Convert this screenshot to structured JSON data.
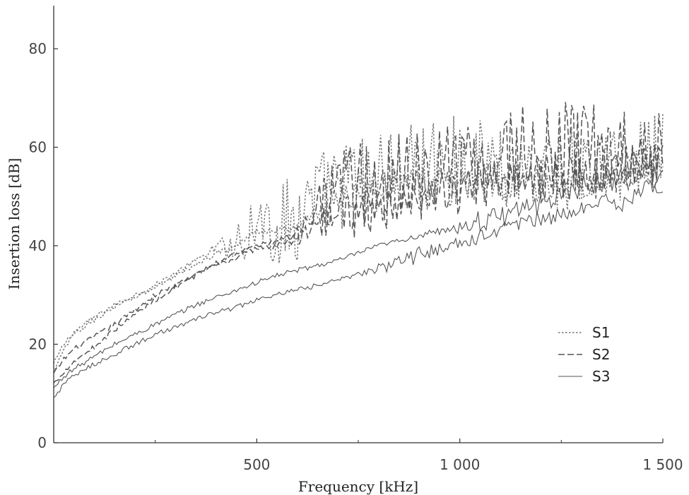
{
  "chart_data": {
    "type": "line",
    "xlabel": "Frequency [kHz]",
    "ylabel": "Insertion loss [dB]",
    "xlim": [
      0,
      1500
    ],
    "ylim": [
      0,
      88
    ],
    "x_ticks": [
      500,
      1000,
      1500
    ],
    "x_tick_labels": [
      "500",
      "1 000",
      "1 500"
    ],
    "x_minor_ticks": [
      250,
      750,
      1250
    ],
    "y_ticks": [
      0,
      20,
      40,
      60,
      80
    ],
    "y_tick_labels": [
      "0",
      "20",
      "40",
      "60",
      "80"
    ],
    "grid": false,
    "legend_position": "lower-right",
    "series": [
      {
        "name": "S1",
        "style": "dotted",
        "color": "#777777",
        "bands": [
          {
            "points": [
              [
                0,
                16
              ],
              [
                25,
                20
              ],
              [
                50,
                22.5
              ],
              [
                100,
                25.5
              ],
              [
                150,
                28
              ],
              [
                200,
                30
              ],
              [
                250,
                32
              ],
              [
                300,
                34.5
              ],
              [
                350,
                37
              ],
              [
                400,
                39.5
              ],
              [
                450,
                41
              ],
              [
                500,
                45
              ],
              [
                550,
                44
              ],
              [
                600,
                46
              ],
              [
                650,
                50
              ],
              [
                700,
                52
              ],
              [
                750,
                54
              ],
              [
                800,
                55
              ],
              [
                850,
                56
              ],
              [
                900,
                56
              ],
              [
                950,
                57
              ],
              [
                1000,
                57
              ],
              [
                1050,
                57
              ],
              [
                1100,
                56
              ],
              [
                1150,
                56
              ],
              [
                1200,
                56
              ],
              [
                1250,
                56
              ],
              [
                1300,
                56
              ],
              [
                1350,
                56
              ],
              [
                1400,
                57
              ],
              [
                1450,
                58
              ],
              [
                1500,
                62
              ]
            ],
            "noise_start": 380,
            "noise_amp": 9
          },
          {
            "points": [
              [
                0,
                14
              ],
              [
                25,
                19
              ],
              [
                50,
                22
              ],
              [
                100,
                25
              ],
              [
                150,
                27.5
              ],
              [
                200,
                29.5
              ],
              [
                250,
                31.5
              ],
              [
                300,
                34
              ],
              [
                350,
                36
              ],
              [
                400,
                38.5
              ],
              [
                450,
                40
              ],
              [
                500,
                43
              ],
              [
                550,
                43
              ],
              [
                600,
                44
              ],
              [
                650,
                47
              ],
              [
                700,
                49
              ],
              [
                750,
                51
              ],
              [
                800,
                52
              ],
              [
                850,
                53
              ],
              [
                900,
                53
              ],
              [
                950,
                53
              ],
              [
                1000,
                53
              ],
              [
                1050,
                53
              ],
              [
                1100,
                52
              ],
              [
                1150,
                52
              ],
              [
                1200,
                52
              ],
              [
                1250,
                52
              ],
              [
                1300,
                52
              ],
              [
                1350,
                53
              ],
              [
                1400,
                54
              ],
              [
                1450,
                55
              ],
              [
                1500,
                57
              ]
            ],
            "noise_start": 600,
            "noise_amp": 3
          }
        ]
      },
      {
        "name": "S2",
        "style": "dashed",
        "color": "#555555",
        "bands": [
          {
            "points": [
              [
                0,
                14
              ],
              [
                25,
                17
              ],
              [
                50,
                19
              ],
              [
                100,
                21.5
              ],
              [
                150,
                24
              ],
              [
                200,
                27
              ],
              [
                250,
                30
              ],
              [
                300,
                32
              ],
              [
                350,
                34
              ],
              [
                400,
                36.5
              ],
              [
                450,
                38.5
              ],
              [
                500,
                40
              ],
              [
                550,
                41
              ],
              [
                600,
                43
              ],
              [
                650,
                47
              ],
              [
                700,
                49
              ],
              [
                750,
                52
              ],
              [
                800,
                53
              ],
              [
                850,
                53
              ],
              [
                900,
                54
              ],
              [
                950,
                55
              ],
              [
                1000,
                56
              ],
              [
                1050,
                57
              ],
              [
                1100,
                58
              ],
              [
                1150,
                59
              ],
              [
                1200,
                59
              ],
              [
                1250,
                59
              ],
              [
                1300,
                59
              ],
              [
                1350,
                59
              ],
              [
                1400,
                60
              ],
              [
                1450,
                61
              ],
              [
                1500,
                63
              ]
            ],
            "noise_start": 560,
            "noise_amp": 10
          },
          {
            "points": [
              [
                0,
                12
              ],
              [
                25,
                14.5
              ],
              [
                50,
                16.5
              ],
              [
                100,
                19.5
              ],
              [
                150,
                23
              ],
              [
                200,
                26
              ],
              [
                250,
                29
              ],
              [
                300,
                31.5
              ],
              [
                350,
                34
              ],
              [
                400,
                36
              ],
              [
                450,
                37.5
              ],
              [
                500,
                39.5
              ],
              [
                550,
                40
              ],
              [
                600,
                42
              ],
              [
                650,
                44
              ],
              [
                700,
                46
              ],
              [
                750,
                47
              ],
              [
                800,
                48
              ],
              [
                850,
                49
              ],
              [
                900,
                50
              ],
              [
                950,
                51
              ],
              [
                1000,
                52
              ],
              [
                1050,
                53
              ],
              [
                1100,
                54
              ],
              [
                1150,
                54
              ],
              [
                1200,
                54
              ],
              [
                1250,
                55
              ],
              [
                1300,
                55
              ],
              [
                1350,
                55
              ],
              [
                1400,
                56
              ],
              [
                1450,
                57
              ],
              [
                1500,
                58
              ]
            ],
            "noise_start": 560,
            "noise_amp": 4
          }
        ]
      },
      {
        "name": "S3",
        "style": "solid",
        "color": "#555555",
        "bands": [
          {
            "points": [
              [
                0,
                11
              ],
              [
                25,
                13.5
              ],
              [
                50,
                15
              ],
              [
                100,
                17.5
              ],
              [
                150,
                20
              ],
              [
                200,
                22
              ],
              [
                250,
                24
              ],
              [
                300,
                26
              ],
              [
                350,
                28
              ],
              [
                400,
                29.5
              ],
              [
                450,
                31
              ],
              [
                500,
                32.5
              ],
              [
                550,
                34
              ],
              [
                600,
                35
              ],
              [
                650,
                36
              ],
              [
                700,
                37
              ],
              [
                750,
                38.5
              ],
              [
                800,
                40
              ],
              [
                850,
                41
              ],
              [
                900,
                42
              ],
              [
                950,
                43
              ],
              [
                1000,
                44
              ],
              [
                1050,
                45
              ],
              [
                1100,
                46
              ],
              [
                1150,
                47.5
              ],
              [
                1200,
                49
              ],
              [
                1250,
                50.5
              ],
              [
                1300,
                52
              ],
              [
                1350,
                53
              ],
              [
                1400,
                54
              ],
              [
                1450,
                55
              ],
              [
                1500,
                54
              ]
            ],
            "noise_start": 900,
            "noise_amp": 2
          },
          {
            "points": [
              [
                0,
                9
              ],
              [
                25,
                12
              ],
              [
                50,
                13.5
              ],
              [
                100,
                16
              ],
              [
                150,
                18
              ],
              [
                200,
                20
              ],
              [
                250,
                22
              ],
              [
                300,
                23.5
              ],
              [
                350,
                25
              ],
              [
                400,
                26.5
              ],
              [
                450,
                27.5
              ],
              [
                500,
                29
              ],
              [
                550,
                30
              ],
              [
                600,
                31
              ],
              [
                650,
                32
              ],
              [
                700,
                33
              ],
              [
                750,
                34.5
              ],
              [
                800,
                35.5
              ],
              [
                850,
                37
              ],
              [
                900,
                38
              ],
              [
                950,
                39
              ],
              [
                1000,
                40.5
              ],
              [
                1050,
                42
              ],
              [
                1100,
                43.5
              ],
              [
                1150,
                44.5
              ],
              [
                1200,
                45.5
              ],
              [
                1250,
                46
              ],
              [
                1300,
                47.5
              ],
              [
                1350,
                49.5
              ],
              [
                1400,
                48
              ],
              [
                1450,
                52
              ],
              [
                1500,
                52
              ]
            ],
            "noise_start": 700,
            "noise_amp": 1.5
          }
        ]
      }
    ]
  }
}
